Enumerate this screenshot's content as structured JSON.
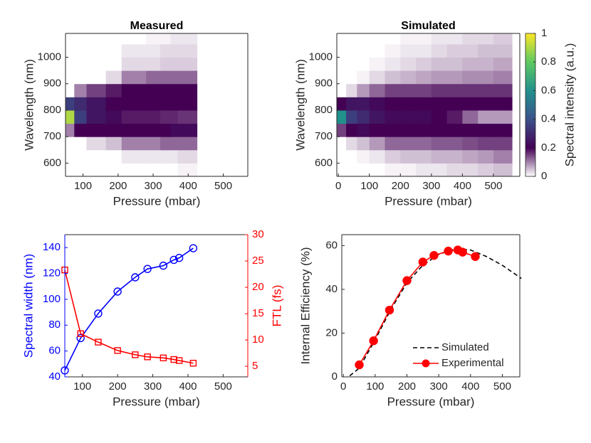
{
  "chart_data": [
    {
      "type": "heatmap",
      "title": "Measured",
      "xlabel": "Pressure (mbar)",
      "ylabel": "Wavelength (nm)",
      "xlim": [
        50,
        570
      ],
      "xticks": [
        100,
        200,
        300,
        400,
        500
      ],
      "ylim": [
        550,
        1090
      ],
      "yticks": [
        600,
        700,
        800,
        900,
        1000
      ],
      "colormap": [
        "#ffffff",
        "#440154",
        "#3b528b",
        "#21918c",
        "#5ec962",
        "#fde725"
      ],
      "x_edges": [
        50,
        75,
        110,
        165,
        210,
        240,
        280,
        320,
        350,
        370,
        400,
        425
      ],
      "y_edges": [
        550,
        600,
        650,
        700,
        750,
        800,
        850,
        900,
        950,
        1000,
        1050,
        1090
      ],
      "values": [
        [
          0,
          0,
          0,
          0,
          0,
          0,
          0,
          0,
          0,
          0.01,
          0.01
        ],
        [
          0,
          0,
          0,
          0,
          0.02,
          0.02,
          0.02,
          0.02,
          0.02,
          0.03,
          0.03
        ],
        [
          0,
          0,
          0.03,
          0.05,
          0.1,
          0.1,
          0.1,
          0.12,
          0.12,
          0.12,
          0.12
        ],
        [
          0.1,
          0.2,
          0.2,
          0.2,
          0.2,
          0.2,
          0.2,
          0.2,
          0.22,
          0.22,
          0.22
        ],
        [
          0.9,
          0.35,
          0.25,
          0.22,
          0.18,
          0.18,
          0.18,
          0.17,
          0.17,
          0.16,
          0.16
        ],
        [
          0.35,
          0.3,
          0.25,
          0.2,
          0.2,
          0.2,
          0.2,
          0.2,
          0.2,
          0.2,
          0.2
        ],
        [
          0,
          0.1,
          0.15,
          0.18,
          0.2,
          0.2,
          0.2,
          0.2,
          0.2,
          0.2,
          0.2
        ],
        [
          0,
          0,
          0,
          0.03,
          0.1,
          0.1,
          0.12,
          0.12,
          0.12,
          0.12,
          0.12
        ],
        [
          0,
          0,
          0,
          0,
          0.03,
          0.03,
          0.03,
          0.04,
          0.04,
          0.04,
          0.04
        ],
        [
          0,
          0,
          0,
          0,
          0.02,
          0.02,
          0.02,
          0.03,
          0.03,
          0.03,
          0.03
        ],
        [
          0,
          0,
          0,
          0,
          0,
          0,
          0.01,
          0.01,
          0.02,
          0.02,
          0.02
        ]
      ]
    },
    {
      "type": "heatmap",
      "title": "Simulated",
      "xlabel": "Pressure (mbar)",
      "ylabel": "Wavelength (nm)",
      "xlim": [
        -5,
        585
      ],
      "xticks": [
        0,
        100,
        200,
        300,
        400,
        500
      ],
      "ylim": [
        550,
        1090
      ],
      "yticks": [
        600,
        700,
        800,
        900,
        1000
      ],
      "colormap": [
        "#ffffff",
        "#440154",
        "#3b528b",
        "#21918c",
        "#5ec962",
        "#fde725"
      ],
      "colorbar": {
        "label": "Spectral intensity (a.u.)",
        "lim": [
          0,
          1
        ],
        "ticks": [
          0,
          0.2,
          0.4,
          0.6,
          0.8,
          1
        ]
      },
      "x_edges": [
        -5,
        25,
        60,
        100,
        150,
        200,
        250,
        300,
        350,
        400,
        450,
        500,
        560
      ],
      "y_edges": [
        550,
        600,
        650,
        700,
        750,
        800,
        850,
        900,
        950,
        1000,
        1050,
        1090
      ],
      "values": [
        [
          0,
          0,
          0,
          0,
          0.01,
          0.01,
          0.02,
          0.02,
          0.03,
          0.03,
          0.04,
          0.05
        ],
        [
          0,
          0,
          0.01,
          0.02,
          0.04,
          0.05,
          0.05,
          0.06,
          0.06,
          0.07,
          0.08,
          0.1
        ],
        [
          0,
          0.03,
          0.05,
          0.08,
          0.12,
          0.12,
          0.12,
          0.13,
          0.13,
          0.14,
          0.15,
          0.15
        ],
        [
          0.15,
          0.2,
          0.22,
          0.2,
          0.2,
          0.2,
          0.2,
          0.2,
          0.2,
          0.2,
          0.2,
          0.2
        ],
        [
          0.6,
          0.35,
          0.3,
          0.25,
          0.22,
          0.22,
          0.22,
          0.2,
          0.18,
          0.12,
          0.08,
          0.08
        ],
        [
          0.2,
          0.25,
          0.25,
          0.22,
          0.2,
          0.2,
          0.2,
          0.2,
          0.2,
          0.2,
          0.2,
          0.2
        ],
        [
          0,
          0.03,
          0.08,
          0.12,
          0.15,
          0.15,
          0.15,
          0.16,
          0.16,
          0.16,
          0.16,
          0.16
        ],
        [
          0,
          0,
          0.01,
          0.03,
          0.05,
          0.06,
          0.07,
          0.08,
          0.08,
          0.09,
          0.09,
          0.1
        ],
        [
          0,
          0,
          0,
          0.01,
          0.02,
          0.03,
          0.04,
          0.05,
          0.05,
          0.06,
          0.06,
          0.07
        ],
        [
          0,
          0,
          0,
          0,
          0.01,
          0.02,
          0.02,
          0.03,
          0.04,
          0.04,
          0.05,
          0.05
        ],
        [
          0,
          0,
          0,
          0,
          0,
          0.01,
          0.01,
          0.02,
          0.02,
          0.03,
          0.03,
          0.04
        ]
      ]
    },
    {
      "type": "line",
      "xlabel": "Pressure (mbar)",
      "ylabel": "Spectral width (nm)",
      "y2label": "FTL (fs)",
      "ycolor": "#0000ff",
      "y2color": "#ff0000",
      "xlim": [
        50,
        570
      ],
      "xticks": [
        100,
        200,
        300,
        400,
        500
      ],
      "ylim": [
        40,
        150
      ],
      "yticks": [
        40,
        60,
        80,
        100,
        120,
        140
      ],
      "y2lim": [
        3,
        30
      ],
      "y2ticks": [
        5,
        10,
        15,
        20,
        25,
        30
      ],
      "x": [
        50,
        95,
        145,
        200,
        250,
        285,
        330,
        360,
        375,
        415
      ],
      "series": [
        {
          "color": "#0000ff",
          "marker": "circle",
          "values": [
            45,
            70,
            89,
            106,
            117,
            123.5,
            126,
            130.5,
            132,
            139.5
          ]
        },
        {
          "color": "#ff0000",
          "marker": "square",
          "axis": "y2",
          "values": [
            23.3,
            11.2,
            9.6,
            8.0,
            7.2,
            6.8,
            6.6,
            6.3,
            6.1,
            5.6
          ]
        }
      ]
    },
    {
      "type": "line",
      "xlabel": "Pressure (mbar)",
      "ylabel": "Internal Efficiency (%)",
      "xlim": [
        -5,
        555
      ],
      "xticks": [
        0,
        100,
        200,
        300,
        400,
        500
      ],
      "ylim": [
        0,
        65
      ],
      "yticks": [
        0,
        20,
        40,
        60
      ],
      "legend": "southeast",
      "series": [
        {
          "name": "Simulated",
          "color": "#000000",
          "dash": true,
          "x": [
            20,
            50,
            100,
            150,
            200,
            250,
            300,
            350,
            400,
            450,
            500,
            560
          ],
          "values": [
            0.5,
            4,
            17,
            31,
            43,
            51,
            56,
            58.5,
            58,
            55,
            51,
            45
          ]
        },
        {
          "name": "Experimental",
          "color": "#ff0000",
          "marker": "dot",
          "x": [
            50,
            95,
            145,
            200,
            250,
            285,
            330,
            360,
            375,
            415
          ],
          "values": [
            5.5,
            16.5,
            30.5,
            44,
            52.5,
            55.5,
            57.5,
            58,
            57,
            55
          ]
        }
      ]
    }
  ]
}
